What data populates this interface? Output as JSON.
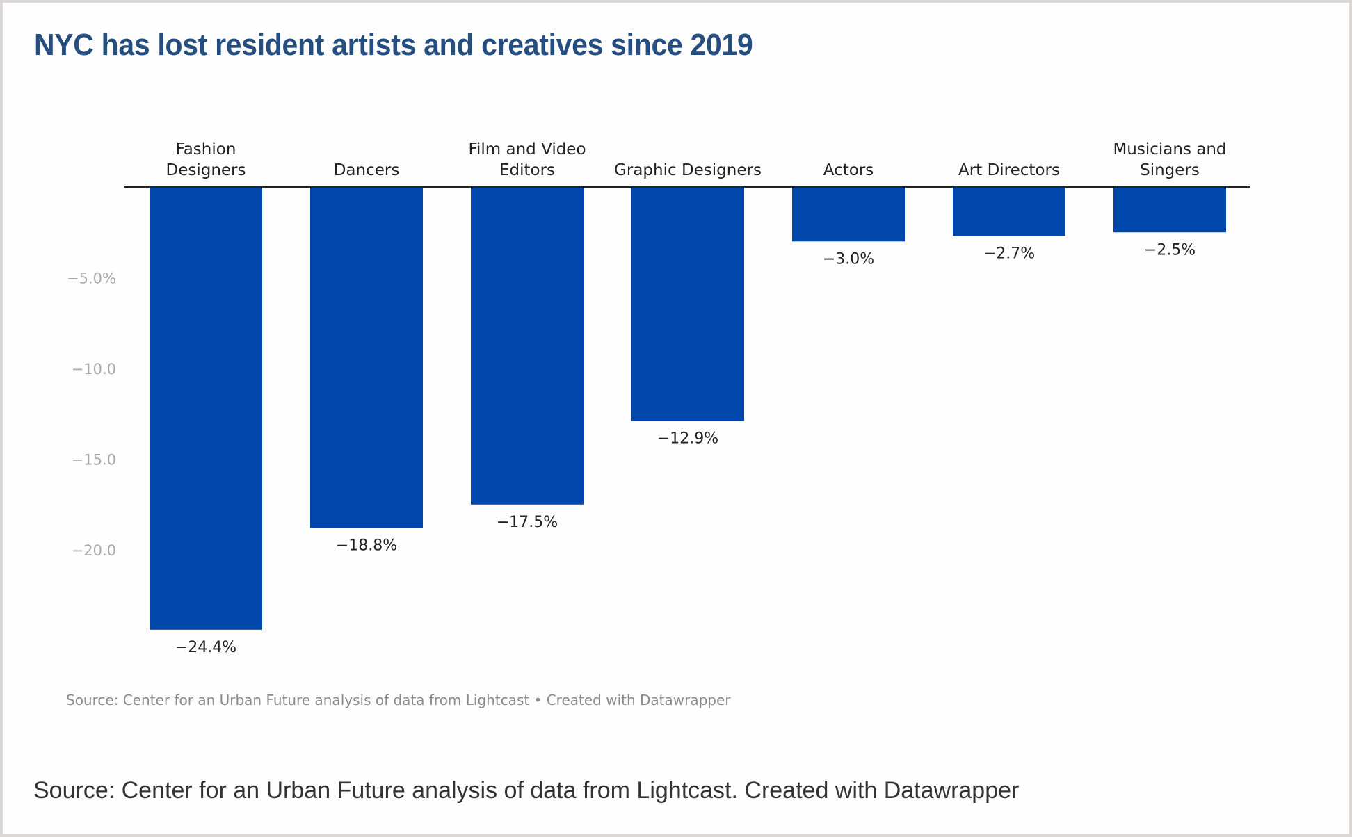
{
  "title": "NYC has lost resident artists and creatives since 2019",
  "chart_source": "Source: Center for an Urban Future analysis of data from Lightcast • Created with Datawrapper",
  "caption": "Source: Center for an Urban Future analysis of data from Lightcast. Created with Datawrapper",
  "colors": {
    "bar": "#0047ab",
    "title": "#254e80",
    "axis": "#222222",
    "tick": "#a8a8a8"
  },
  "chart_data": {
    "type": "bar",
    "title": "NYC has lost resident artists and creatives since 2019",
    "xlabel": "",
    "ylabel": "",
    "categories": [
      [
        "Fashion",
        "Designers"
      ],
      [
        "Dancers"
      ],
      [
        "Film and Video",
        "Editors"
      ],
      [
        "Graphic Designers"
      ],
      [
        "Actors"
      ],
      [
        "Art Directors"
      ],
      [
        "Musicians and",
        "Singers"
      ]
    ],
    "values": [
      -24.4,
      -18.8,
      -17.5,
      -12.9,
      -3.0,
      -2.7,
      -2.5
    ],
    "value_labels": [
      "−24.4%",
      "−18.8%",
      "−17.5%",
      "−12.9%",
      "−3.0%",
      "−2.7%",
      "−2.5%"
    ],
    "y_ticks": [
      -5,
      -10,
      -15,
      -20
    ],
    "y_tick_labels": [
      "−5.0%",
      "−10.0",
      "−15.0",
      "−20.0"
    ],
    "ylim": [
      -25,
      0
    ],
    "grid": false,
    "legend": "none"
  }
}
